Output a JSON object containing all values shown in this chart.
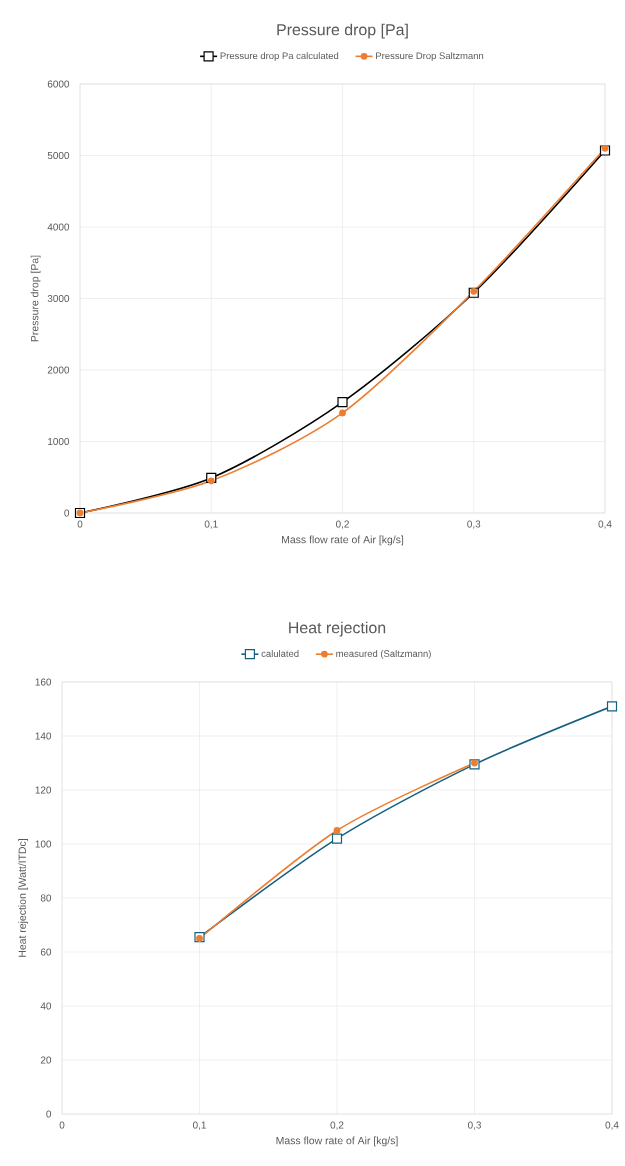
{
  "chart_data": [
    {
      "type": "line",
      "title": "Pressure drop [Pa]",
      "xlabel": "Mass flow rate of Air [kg/s]",
      "ylabel": "Pressure drop [Pa]",
      "x": [
        0,
        0.1,
        0.2,
        0.3,
        0.4
      ],
      "series": [
        {
          "name": "Pressure drop Pa calculated",
          "color": "#000000",
          "marker": "square",
          "values": [
            0,
            490,
            1550,
            3080,
            5070
          ]
        },
        {
          "name": "Pressure Drop Saltzmann",
          "color": "#ed7d31",
          "marker": "circle",
          "values": [
            0,
            450,
            1400,
            3100,
            5100
          ]
        }
      ],
      "xlim": [
        0,
        0.4
      ],
      "ylim": [
        0,
        6000
      ],
      "xticks": [
        0,
        {
          "value": 0.1,
          "label": "0,1"
        },
        {
          "value": 0.2,
          "label": "0,2"
        },
        {
          "value": 0.3,
          "label": "0,3"
        },
        {
          "value": 0.4,
          "label": "0,4"
        }
      ],
      "yticks": [
        0,
        1000,
        2000,
        3000,
        4000,
        5000,
        6000
      ],
      "grid": true,
      "legend": "top"
    },
    {
      "type": "line",
      "title": "Heat rejection",
      "xlabel": "Mass flow rate of Air [kg/s]",
      "ylabel": "Heat rejection [Watt/ITDc]",
      "series": [
        {
          "name": "calulated",
          "color": "#156082",
          "marker": "square",
          "x": [
            0.1,
            0.2,
            0.3,
            0.4
          ],
          "values": [
            65.5,
            102,
            129.5,
            151
          ]
        },
        {
          "name": "measured (Saltzmann)",
          "color": "#ed7d31",
          "marker": "circle",
          "x": [
            0.1,
            0.2,
            0.3
          ],
          "values": [
            65,
            105,
            130
          ]
        }
      ],
      "xlim": [
        0,
        0.4
      ],
      "ylim": [
        0,
        160
      ],
      "xticks": [
        0,
        {
          "value": 0.1,
          "label": "0,1"
        },
        {
          "value": 0.2,
          "label": "0,2"
        },
        {
          "value": 0.3,
          "label": "0,3"
        },
        {
          "value": 0.4,
          "label": "0,4"
        }
      ],
      "yticks": [
        0,
        20,
        40,
        60,
        80,
        100,
        120,
        140,
        160
      ],
      "grid": true,
      "legend": "top"
    }
  ]
}
